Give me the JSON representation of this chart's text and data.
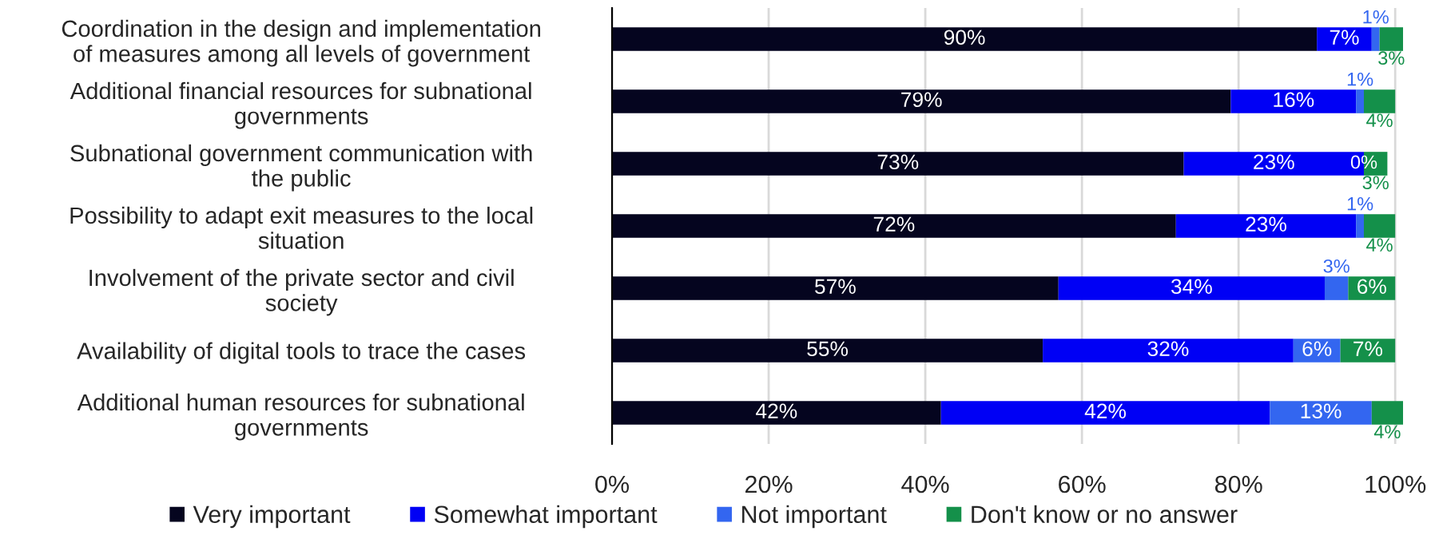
{
  "chart_data": {
    "type": "bar",
    "orientation": "horizontal",
    "stacked": true,
    "categories": [
      "Coordination in the design and implementation\nof measures among all levels of government",
      "Additional financial resources for subnational\ngovernments",
      "Subnational government communication with\nthe public",
      "Possibility to adapt exit measures to the local\nsituation",
      "Involvement of the private sector and civil\nsociety",
      "Availability of digital tools to trace the cases",
      "Additional human resources for subnational\ngovernments"
    ],
    "series": [
      {
        "name": "Very important",
        "color": "#05051f",
        "values": [
          90,
          79,
          73,
          72,
          57,
          55,
          42
        ],
        "value_labels": [
          "90%",
          "79%",
          "73%",
          "72%",
          "57%",
          "55%",
          "42%"
        ]
      },
      {
        "name": "Somewhat important",
        "color": "#0000f5",
        "values": [
          7,
          16,
          23,
          23,
          34,
          32,
          42
        ],
        "value_labels": [
          "7%",
          "16%",
          "23%",
          "23%",
          "34%",
          "32%",
          "42%"
        ]
      },
      {
        "name": "Not important",
        "color": "#3366f0",
        "values": [
          1,
          1,
          0,
          1,
          3,
          6,
          13
        ],
        "value_labels": [
          "1%",
          "1%",
          "0%",
          "1%",
          "3%",
          "6%",
          "13%"
        ]
      },
      {
        "name": "Don't know or no answer",
        "color": "#14904a",
        "values": [
          3,
          4,
          3,
          4,
          6,
          7,
          4
        ],
        "value_labels": [
          "3%",
          "4%",
          "3%",
          "4%",
          "6%",
          "7%",
          "4%"
        ]
      }
    ],
    "xlim": [
      0,
      101
    ],
    "xticks": [
      {
        "value": 0,
        "label": "0%"
      },
      {
        "value": 20,
        "label": "20%"
      },
      {
        "value": 40,
        "label": "40%"
      },
      {
        "value": 60,
        "label": "60%"
      },
      {
        "value": 80,
        "label": "80%"
      },
      {
        "value": 100,
        "label": "100%"
      }
    ],
    "grid": "x",
    "legend": "bottom"
  }
}
